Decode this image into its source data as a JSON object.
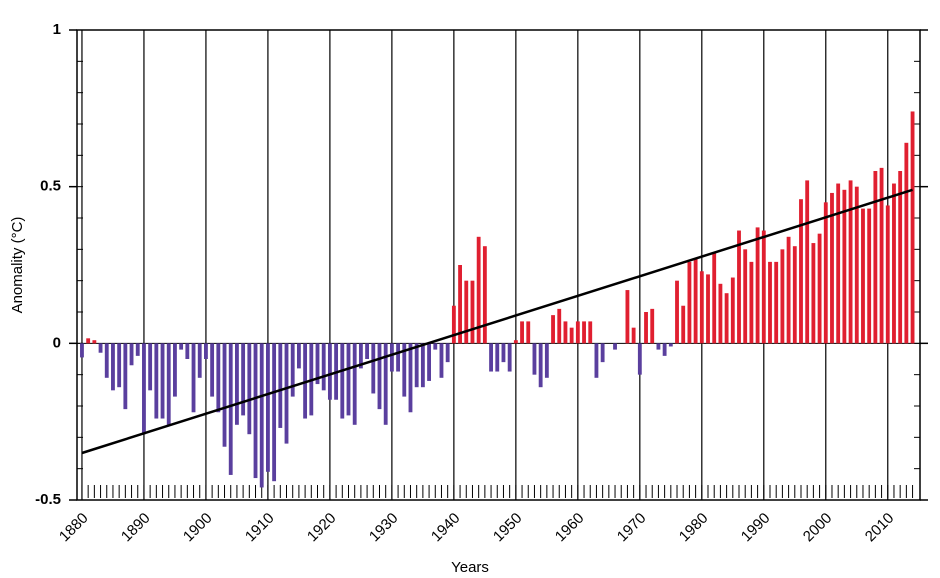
{
  "chart_data": {
    "type": "bar",
    "xlabel": "Years",
    "ylabel": "Anomality (°C)",
    "x": [
      1880,
      1881,
      1882,
      1883,
      1884,
      1885,
      1886,
      1887,
      1888,
      1889,
      1890,
      1891,
      1892,
      1893,
      1894,
      1895,
      1896,
      1897,
      1898,
      1899,
      1900,
      1901,
      1902,
      1903,
      1904,
      1905,
      1906,
      1907,
      1908,
      1909,
      1910,
      1911,
      1912,
      1913,
      1914,
      1915,
      1916,
      1917,
      1918,
      1919,
      1920,
      1921,
      1922,
      1923,
      1924,
      1925,
      1926,
      1927,
      1928,
      1929,
      1930,
      1931,
      1932,
      1933,
      1934,
      1935,
      1936,
      1937,
      1938,
      1939,
      1940,
      1941,
      1942,
      1943,
      1944,
      1945,
      1946,
      1947,
      1948,
      1949,
      1950,
      1951,
      1952,
      1953,
      1954,
      1955,
      1956,
      1957,
      1958,
      1959,
      1960,
      1961,
      1962,
      1963,
      1964,
      1965,
      1966,
      1967,
      1968,
      1969,
      1970,
      1971,
      1972,
      1973,
      1974,
      1975,
      1976,
      1977,
      1978,
      1979,
      1980,
      1981,
      1982,
      1983,
      1984,
      1985,
      1986,
      1987,
      1988,
      1989,
      1990,
      1991,
      1992,
      1993,
      1994,
      1995,
      1996,
      1997,
      1998,
      1999,
      2000,
      2001,
      2002,
      2003,
      2004,
      2005,
      2006,
      2007,
      2008,
      2009,
      2010,
      2011,
      2012,
      2013,
      2014
    ],
    "values": [
      -0.045,
      0.016,
      0.01,
      -0.03,
      -0.11,
      -0.15,
      -0.14,
      -0.21,
      -0.07,
      -0.04,
      -0.29,
      -0.15,
      -0.24,
      -0.24,
      -0.26,
      -0.17,
      -0.02,
      -0.05,
      -0.22,
      -0.11,
      -0.05,
      -0.17,
      -0.22,
      -0.33,
      -0.42,
      -0.26,
      -0.23,
      -0.29,
      -0.43,
      -0.46,
      -0.41,
      -0.44,
      -0.27,
      -0.32,
      -0.17,
      -0.08,
      -0.24,
      -0.23,
      -0.13,
      -0.15,
      -0.18,
      -0.18,
      -0.24,
      -0.23,
      -0.26,
      -0.08,
      -0.05,
      -0.16,
      -0.21,
      -0.26,
      -0.09,
      -0.09,
      -0.17,
      -0.22,
      -0.14,
      -0.14,
      -0.12,
      -0.02,
      -0.11,
      -0.06,
      0.12,
      0.25,
      0.2,
      0.2,
      0.34,
      0.31,
      -0.09,
      -0.09,
      -0.06,
      -0.09,
      0.01,
      0.07,
      0.07,
      -0.1,
      -0.14,
      -0.11,
      0.09,
      0.11,
      0.07,
      0.05,
      0.07,
      0.07,
      0.07,
      -0.11,
      -0.06,
      0,
      -0.02,
      0,
      0.17,
      0.05,
      -0.1,
      0.1,
      0.11,
      -0.02,
      -0.04,
      -0.01,
      0.2,
      0.12,
      0.26,
      0.27,
      0.23,
      0.22,
      0.29,
      0.19,
      0.16,
      0.21,
      0.36,
      0.3,
      0.26,
      0.37,
      0.36,
      0.26,
      0.26,
      0.3,
      0.34,
      0.31,
      0.46,
      0.52,
      0.32,
      0.35,
      0.45,
      0.48,
      0.51,
      0.49,
      0.52,
      0.5,
      0.43,
      0.43,
      0.55,
      0.56,
      0.44,
      0.51,
      0.55,
      0.64,
      0.74
    ],
    "positive_color": "#e01f30",
    "negative_color": "#5a3f9e",
    "trend": {
      "x": [
        1880,
        2014
      ],
      "values": [
        -0.35,
        0.49
      ],
      "color": "#000000"
    },
    "xlim": [
      1879.2,
      2015.2
    ],
    "xticks": [
      1880,
      1890,
      1900,
      1910,
      1920,
      1930,
      1940,
      1950,
      1960,
      1970,
      1980,
      1990,
      2000,
      2010
    ],
    "ylim": [
      -0.5,
      1
    ],
    "yticks": [
      -0.5,
      0,
      0.5,
      1
    ],
    "grid": true
  }
}
